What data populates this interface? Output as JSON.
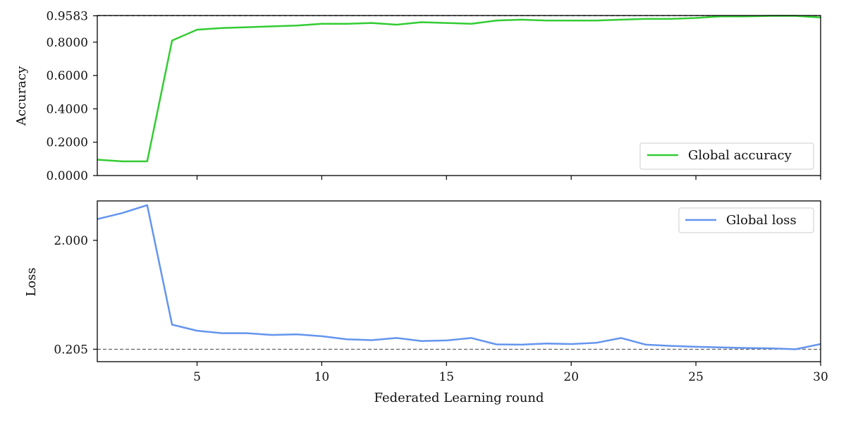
{
  "chart_data": [
    {
      "type": "line",
      "ylabel": "Accuracy",
      "ylim": [
        0,
        0.96
      ],
      "yticks": [
        0.0,
        0.2,
        0.4,
        0.6,
        0.8,
        0.9583
      ],
      "ytick_labels": [
        "0.0000",
        "0.2000",
        "0.4000",
        "0.6000",
        "0.8000",
        "0.9583"
      ],
      "reference_line": 0.9583,
      "legend_position": "lower-right",
      "series": [
        {
          "name": "Global accuracy",
          "color": "#33cc33",
          "x": [
            1,
            2,
            3,
            4,
            5,
            6,
            7,
            8,
            9,
            10,
            11,
            12,
            13,
            14,
            15,
            16,
            17,
            18,
            19,
            20,
            21,
            22,
            23,
            24,
            25,
            26,
            27,
            28,
            29,
            30
          ],
          "values": [
            0.095,
            0.085,
            0.085,
            0.81,
            0.875,
            0.885,
            0.89,
            0.895,
            0.9,
            0.91,
            0.91,
            0.915,
            0.905,
            0.92,
            0.915,
            0.91,
            0.93,
            0.935,
            0.93,
            0.93,
            0.93,
            0.935,
            0.94,
            0.94,
            0.945,
            0.955,
            0.955,
            0.958,
            0.958,
            0.948
          ]
        }
      ]
    },
    {
      "type": "line",
      "xlabel": "Federated Learning round",
      "ylabel": "Loss",
      "xlim": [
        1,
        30
      ],
      "xticks": [
        5,
        10,
        15,
        20,
        25,
        30
      ],
      "ylim": [
        0.0,
        2.65
      ],
      "yticks": [
        0.205,
        2.0
      ],
      "ytick_labels": [
        "0.205",
        "2.000"
      ],
      "reference_line": 0.205,
      "legend_position": "upper-right",
      "series": [
        {
          "name": "Global loss",
          "color": "#6495ed",
          "x": [
            1,
            2,
            3,
            4,
            5,
            6,
            7,
            8,
            9,
            10,
            11,
            12,
            13,
            14,
            15,
            16,
            17,
            18,
            19,
            20,
            21,
            22,
            23,
            24,
            25,
            26,
            27,
            28,
            29,
            30
          ],
          "values": [
            2.35,
            2.45,
            2.58,
            0.61,
            0.51,
            0.47,
            0.47,
            0.44,
            0.45,
            0.42,
            0.37,
            0.355,
            0.39,
            0.34,
            0.35,
            0.39,
            0.285,
            0.28,
            0.3,
            0.29,
            0.31,
            0.39,
            0.28,
            0.26,
            0.245,
            0.235,
            0.225,
            0.22,
            0.205,
            0.29
          ]
        }
      ]
    }
  ]
}
